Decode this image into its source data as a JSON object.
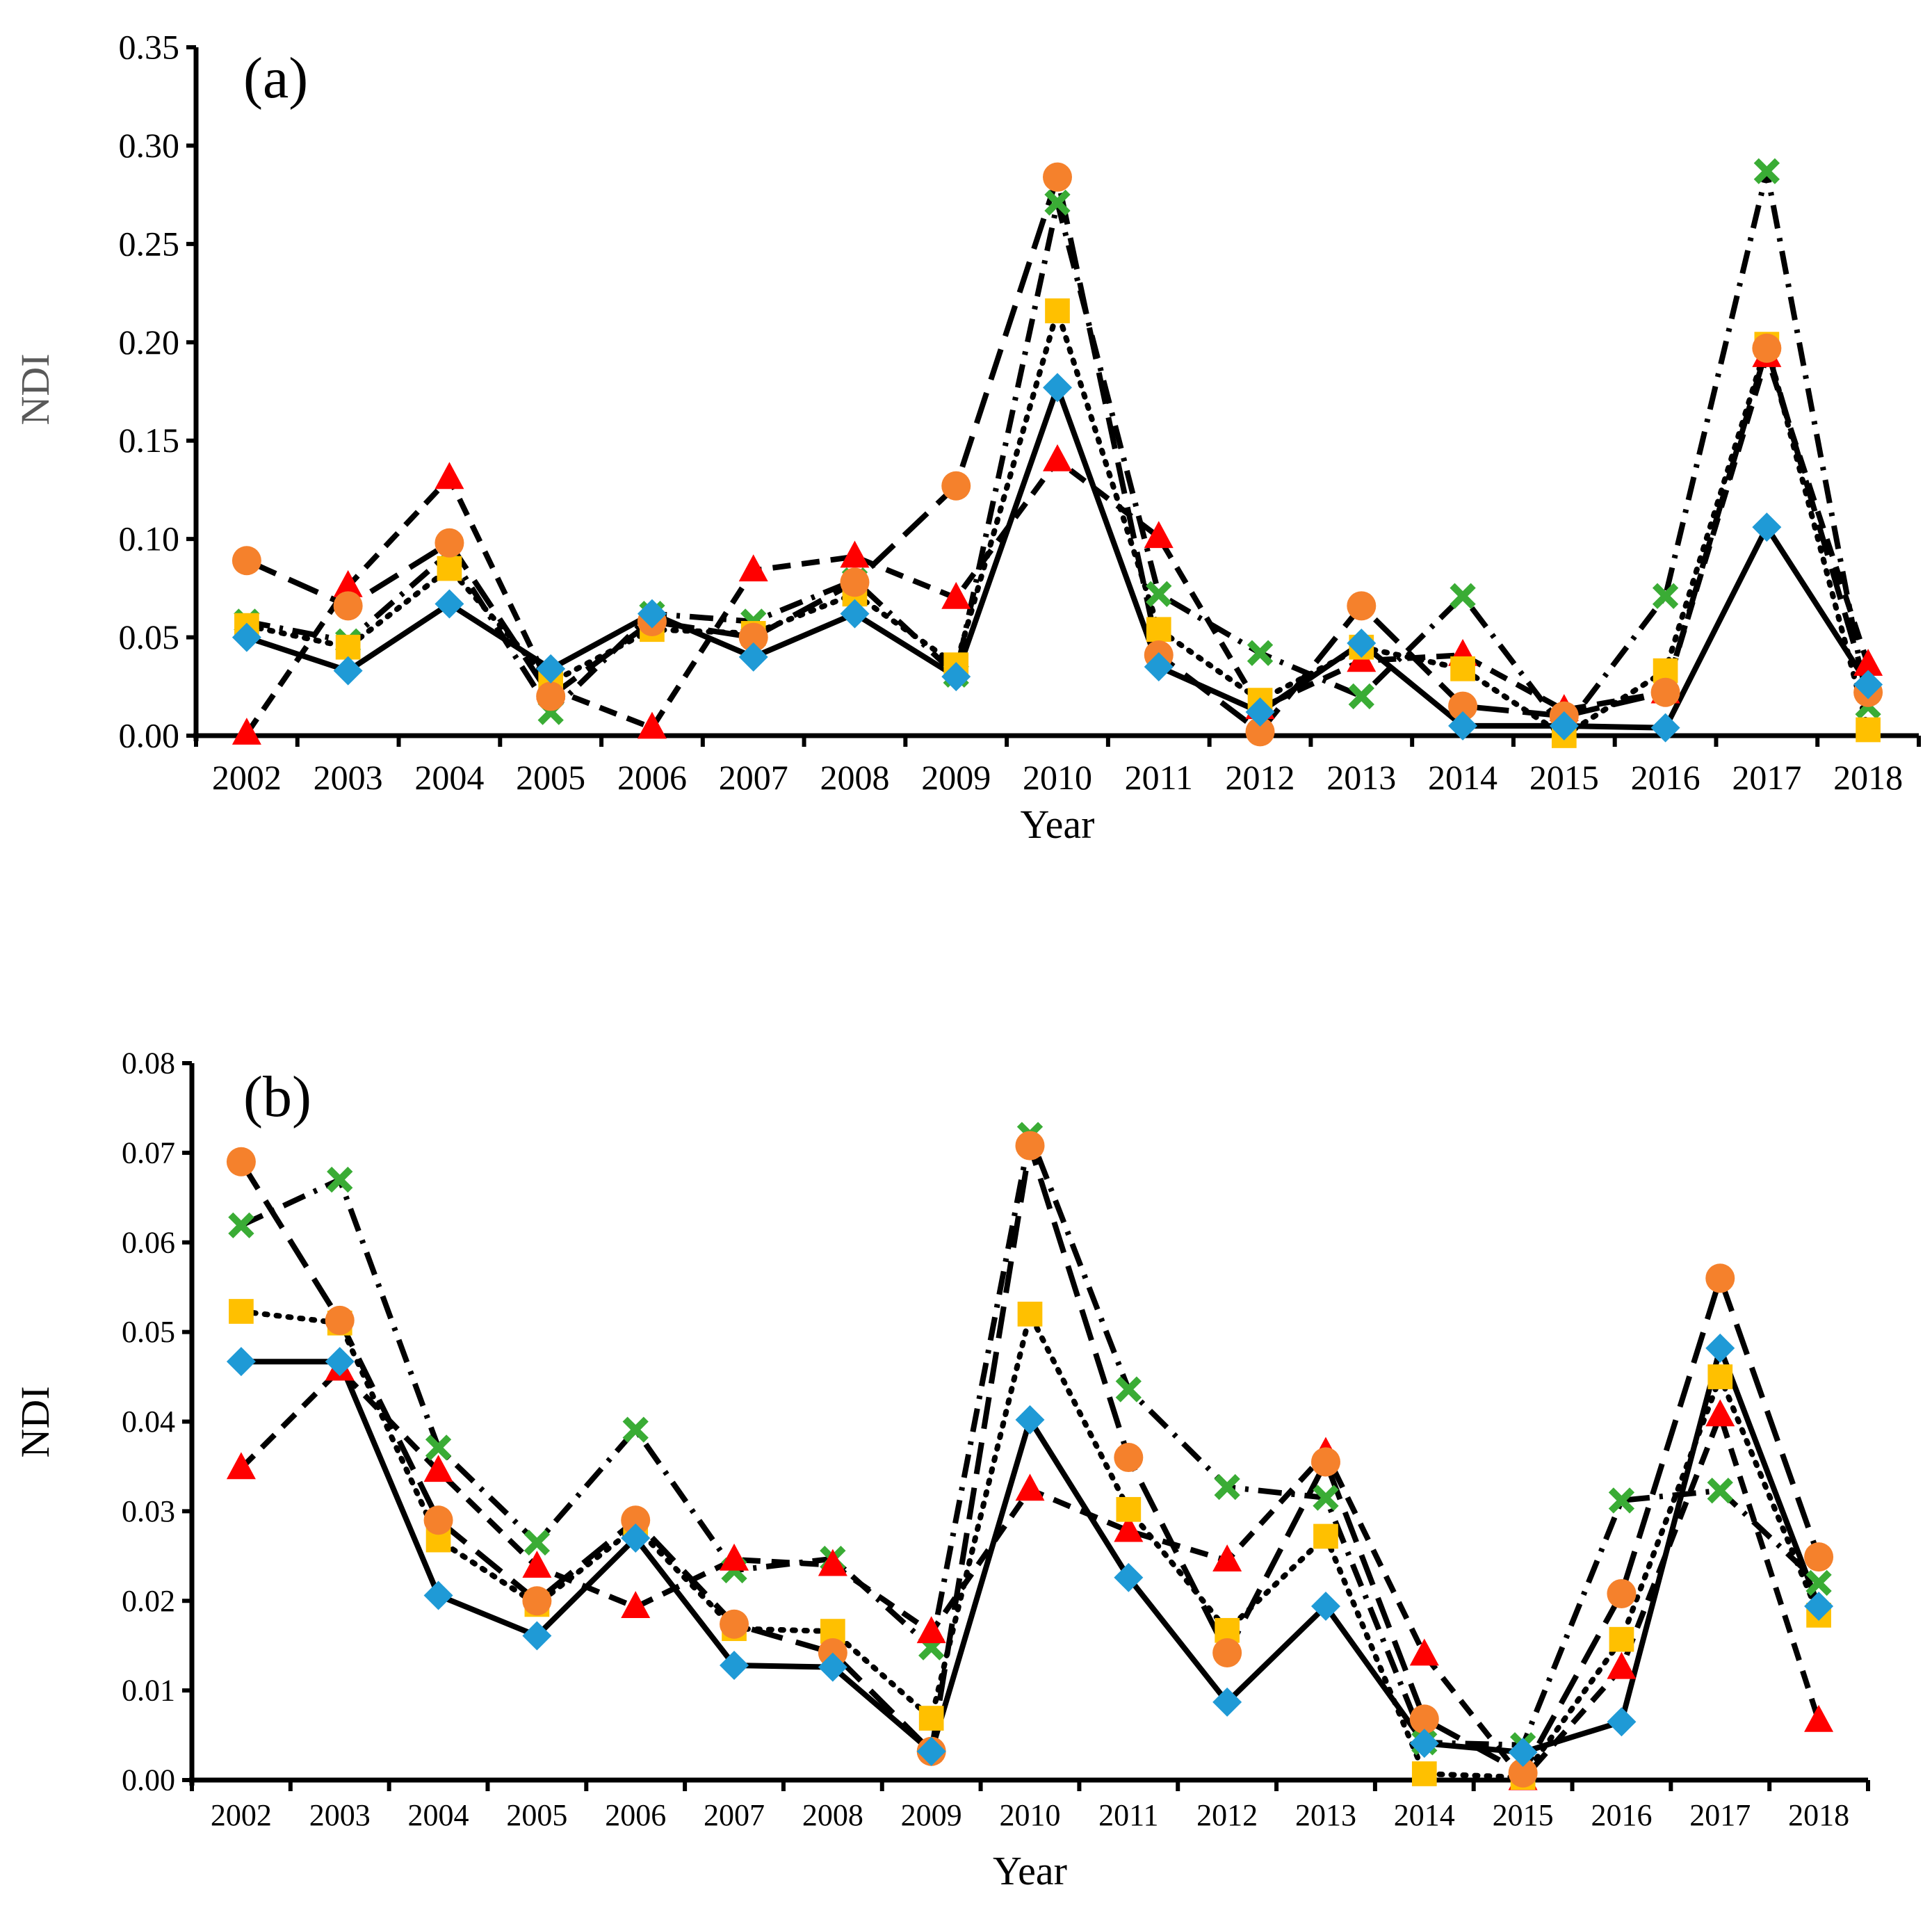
{
  "chart_data": [
    {
      "type": "line",
      "panel_label": "(a)",
      "xlabel": "Year",
      "ylabel": "NDI",
      "ylim": [
        0,
        0.35
      ],
      "y_ticks": [
        "0.00",
        "0.05",
        "0.10",
        "0.15",
        "0.20",
        "0.25",
        "0.30",
        "0.35"
      ],
      "categories": [
        "2002",
        "2003",
        "2004",
        "2005",
        "2006",
        "2007",
        "2008",
        "2009",
        "2010",
        "2011",
        "2012",
        "2013",
        "2014",
        "2015",
        "2016",
        "2017",
        "2018"
      ],
      "series": [
        {
          "name": "diamond-blue-solid",
          "marker": "diamond",
          "color": "#1f9ad6",
          "line": "solid",
          "values": [
            0.05,
            0.033,
            0.067,
            0.034,
            0.062,
            0.04,
            0.062,
            0.03,
            0.177,
            0.035,
            0.012,
            0.047,
            0.005,
            0.005,
            0.004,
            0.106,
            0.026
          ]
        },
        {
          "name": "square-yellow-dotted",
          "marker": "square",
          "color": "#ffc000",
          "line": "dotted",
          "values": [
            0.056,
            0.045,
            0.085,
            0.027,
            0.054,
            0.052,
            0.072,
            0.036,
            0.216,
            0.054,
            0.018,
            0.045,
            0.034,
            0.0,
            0.033,
            0.199,
            0.003
          ]
        },
        {
          "name": "triangle-red-dashed",
          "marker": "triangle",
          "color": "#ff0000",
          "line": "dashed",
          "values": [
            0.001,
            0.076,
            0.131,
            0.024,
            0.004,
            0.084,
            0.091,
            0.07,
            0.14,
            0.101,
            0.014,
            0.038,
            0.041,
            0.013,
            0.022,
            0.193,
            0.036
          ]
        },
        {
          "name": "circle-orange-longdash",
          "marker": "circle",
          "color": "#f5812c",
          "line": "longdash",
          "values": [
            0.089,
            0.066,
            0.098,
            0.02,
            0.058,
            0.05,
            0.078,
            0.127,
            0.284,
            0.041,
            0.002,
            0.066,
            0.015,
            0.01,
            0.022,
            0.197,
            0.022
          ]
        },
        {
          "name": "x-green-dashdot",
          "marker": "x",
          "color": "#3aac35",
          "line": "dashdot",
          "values": [
            0.058,
            0.048,
            0.093,
            0.012,
            0.062,
            0.058,
            0.079,
            0.031,
            0.271,
            0.072,
            0.042,
            0.02,
            0.071,
            0.003,
            0.071,
            0.287,
            0.015
          ]
        }
      ]
    },
    {
      "type": "line",
      "panel_label": "(b)",
      "xlabel": "Year",
      "ylabel": "NDI",
      "ylim": [
        0,
        0.08
      ],
      "y_ticks": [
        "0.00",
        "0.01",
        "0.02",
        "0.03",
        "0.04",
        "0.05",
        "0.06",
        "0.07",
        "0.08"
      ],
      "categories": [
        "2002",
        "2003",
        "2004",
        "2005",
        "2006",
        "2007",
        "2008",
        "2009",
        "2010",
        "2011",
        "2012",
        "2013",
        "2014",
        "2015",
        "2016",
        "2017",
        "2018"
      ],
      "series": [
        {
          "name": "diamond-blue-solid",
          "marker": "diamond",
          "color": "#1f9ad6",
          "line": "solid",
          "values": [
            0.0467,
            0.0467,
            0.0206,
            0.0161,
            0.027,
            0.0128,
            0.0126,
            0.0032,
            0.0402,
            0.0226,
            0.0087,
            0.0194,
            0.0041,
            0.0031,
            0.0065,
            0.0482,
            0.0194
          ]
        },
        {
          "name": "square-yellow-dotted",
          "marker": "square",
          "color": "#ffc000",
          "line": "dotted",
          "values": [
            0.0523,
            0.051,
            0.0268,
            0.0196,
            0.0282,
            0.0169,
            0.0166,
            0.0069,
            0.052,
            0.0302,
            0.0167,
            0.0272,
            0.0007,
            0.0003,
            0.0157,
            0.045,
            0.0184
          ]
        },
        {
          "name": "triangle-red-dashed",
          "marker": "triangle",
          "color": "#ff0000",
          "line": "dashed",
          "values": [
            0.0348,
            0.0458,
            0.0345,
            0.0238,
            0.0193,
            0.0246,
            0.024,
            0.0165,
            0.0324,
            0.0278,
            0.0245,
            0.0365,
            0.014,
            0.0001,
            0.0125,
            0.0407,
            0.0066
          ]
        },
        {
          "name": "circle-orange-longdash",
          "marker": "circle",
          "color": "#f5812c",
          "line": "longdash",
          "values": [
            0.069,
            0.0513,
            0.029,
            0.02,
            0.029,
            0.0174,
            0.0142,
            0.0032,
            0.0708,
            0.036,
            0.0142,
            0.0355,
            0.0068,
            0.0008,
            0.0208,
            0.056,
            0.0249
          ]
        },
        {
          "name": "x-green-dashdot",
          "marker": "x",
          "color": "#3aac35",
          "line": "dashdot",
          "values": [
            0.0619,
            0.067,
            0.0371,
            0.0265,
            0.0391,
            0.0234,
            0.0247,
            0.0148,
            0.072,
            0.0436,
            0.0327,
            0.0315,
            0.0042,
            0.0039,
            0.0312,
            0.0323,
            0.022
          ]
        }
      ]
    }
  ]
}
